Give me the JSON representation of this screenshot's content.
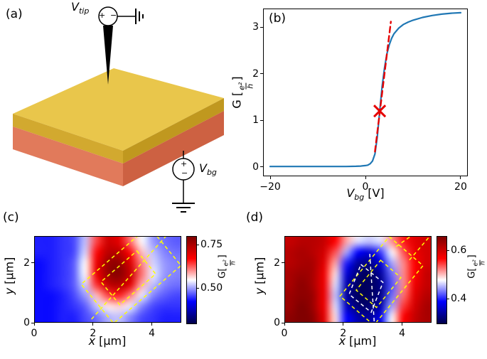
{
  "figure": {
    "panels": {
      "a": "(a)",
      "b": "(b)",
      "c": "(c)",
      "d": "(d)"
    }
  },
  "panel_a": {
    "tip_label": {
      "symbol": "V",
      "sub": "tip"
    },
    "bg_label": {
      "symbol": "V",
      "sub": "bg"
    },
    "tip_source": {
      "plus": "+",
      "minus": "−"
    },
    "bg_source": {
      "plus": "+",
      "minus": "−"
    },
    "colors": {
      "top_gold": "#e9c64b",
      "side_gold": "#d2a92f",
      "front_orange": "#e17a5b",
      "electrode": "#ededed",
      "flake": "#58a8d8"
    }
  },
  "chart_data": [
    {
      "type": "line",
      "panel": "b",
      "xlabel": "V_bg [V]",
      "ylabel": "G [e^2/h]",
      "xlabel_parts": {
        "symbol": "V",
        "sub": "bg",
        "rest": "[V]"
      },
      "ylabel_parts": {
        "prefix": "G [",
        "num": "e²",
        "den": "h",
        "suffix": "]"
      },
      "xlim": [
        -21.5,
        21.5
      ],
      "ylim": [
        -0.2,
        3.4
      ],
      "xticks": [
        {
          "v": -20,
          "label": "−20"
        },
        {
          "v": 0,
          "label": "0"
        },
        {
          "v": 20,
          "label": "20"
        }
      ],
      "yticks": [
        {
          "v": 0,
          "label": "0"
        },
        {
          "v": 1,
          "label": "1"
        },
        {
          "v": 2,
          "label": "2"
        },
        {
          "v": 3,
          "label": "3"
        }
      ],
      "series": [
        {
          "name": "conductance-vs-backgate",
          "color": "#1f77b4",
          "width": 2.2,
          "dash": null,
          "x": [
            -20,
            -16,
            -12,
            -8,
            -4,
            -2,
            -1,
            0,
            0.5,
            1,
            1.5,
            2,
            2.5,
            3,
            3.5,
            4,
            4.5,
            5,
            5.5,
            6,
            7,
            8,
            9,
            10,
            12,
            14,
            16,
            18,
            20
          ],
          "y": [
            0.01,
            0.01,
            0.01,
            0.01,
            0.01,
            0.015,
            0.02,
            0.03,
            0.04,
            0.07,
            0.13,
            0.28,
            0.65,
            1.2,
            1.72,
            2.12,
            2.42,
            2.62,
            2.76,
            2.86,
            2.98,
            3.06,
            3.11,
            3.15,
            3.21,
            3.25,
            3.28,
            3.3,
            3.31
          ]
        },
        {
          "name": "linear-fit",
          "color": "#e50000",
          "width": 2.4,
          "dash": [
            8,
            5
          ],
          "x": [
            2.0,
            5.35
          ],
          "y": [
            0.33,
            3.12
          ]
        }
      ],
      "marker": {
        "x": 3.0,
        "y": 1.2,
        "symbol": "x",
        "color": "#e50000",
        "size": 8
      }
    },
    {
      "type": "heatmap",
      "panel": "c",
      "xlabel": "x [μm]",
      "ylabel": "y [μm]",
      "colorbar_label": "G[e²/h]",
      "xlabel_parts": {
        "symbol": "x",
        "rest": "[μm]"
      },
      "ylabel_parts": {
        "symbol": "y",
        "rest": "[μm]"
      },
      "cbar_label_parts": {
        "prefix": "G[",
        "num": "e²",
        "den": "h",
        "suffix": "]"
      },
      "xlim": [
        0,
        5
      ],
      "ylim": [
        0,
        2.9
      ],
      "xticks": [
        {
          "v": 0,
          "label": "0"
        },
        {
          "v": 2,
          "label": "2"
        },
        {
          "v": 4,
          "label": "4"
        }
      ],
      "yticks": [
        {
          "v": 0,
          "label": "0"
        },
        {
          "v": 2,
          "label": "2"
        }
      ],
      "colormap": "seismic",
      "vmin": 0.3,
      "vmax": 0.8,
      "colorbar_ticks": [
        {
          "v": 0.5,
          "label": "0.50"
        },
        {
          "v": 0.75,
          "label": "0.75"
        }
      ],
      "grid": [
        [
          0.44,
          0.44,
          0.45,
          0.46,
          0.52,
          0.64,
          0.72,
          0.7,
          0.62,
          0.55,
          0.5,
          0.48,
          0.47
        ],
        [
          0.44,
          0.44,
          0.45,
          0.46,
          0.53,
          0.67,
          0.74,
          0.74,
          0.67,
          0.58,
          0.52,
          0.49,
          0.48
        ],
        [
          0.43,
          0.44,
          0.45,
          0.47,
          0.55,
          0.69,
          0.77,
          0.78,
          0.71,
          0.61,
          0.53,
          0.5,
          0.49
        ],
        [
          0.43,
          0.44,
          0.45,
          0.47,
          0.55,
          0.69,
          0.77,
          0.79,
          0.73,
          0.62,
          0.54,
          0.5,
          0.49
        ],
        [
          0.43,
          0.44,
          0.45,
          0.47,
          0.53,
          0.65,
          0.73,
          0.75,
          0.7,
          0.59,
          0.52,
          0.49,
          0.48
        ],
        [
          0.43,
          0.43,
          0.44,
          0.46,
          0.5,
          0.58,
          0.64,
          0.66,
          0.61,
          0.54,
          0.49,
          0.47,
          0.46
        ],
        [
          0.43,
          0.43,
          0.44,
          0.45,
          0.47,
          0.52,
          0.56,
          0.57,
          0.54,
          0.49,
          0.46,
          0.45,
          0.45
        ],
        [
          0.43,
          0.43,
          0.44,
          0.44,
          0.46,
          0.48,
          0.51,
          0.52,
          0.49,
          0.46,
          0.45,
          0.44,
          0.44
        ]
      ],
      "overlays": [
        {
          "color": "#ffff00",
          "dash": [
            5,
            4
          ],
          "closed": true,
          "points": [
            [
              3.9,
              3.22
            ],
            [
              4.99,
              1.91
            ],
            [
              2.7,
              -0.02
            ],
            [
              1.6,
              1.29
            ]
          ]
        },
        {
          "color": "#ffff00",
          "dash": [
            5,
            4
          ],
          "closed": true,
          "points": [
            [
              3.49,
              2.4
            ],
            [
              4.13,
              1.63
            ],
            [
              2.91,
              0.6
            ],
            [
              2.27,
              1.37
            ]
          ]
        },
        {
          "color": "#ffff00",
          "dash": [
            5,
            4
          ],
          "closed": false,
          "points": [
            [
              1.95,
              0.12
            ],
            [
              4.5,
              2.92
            ]
          ]
        }
      ]
    },
    {
      "type": "heatmap",
      "panel": "d",
      "xlabel": "x [μm]",
      "ylabel": "y [μm]",
      "colorbar_label": "G[e²/h]",
      "xlabel_parts": {
        "symbol": "x",
        "rest": "[μm]"
      },
      "ylabel_parts": {
        "symbol": "y",
        "rest": "[μm]"
      },
      "cbar_label_parts": {
        "prefix": "G[",
        "num": "e²",
        "den": "h",
        "suffix": "]"
      },
      "xlim": [
        0,
        5
      ],
      "ylim": [
        0,
        2.9
      ],
      "xticks": [
        {
          "v": 0,
          "label": "0"
        },
        {
          "v": 2,
          "label": "2"
        },
        {
          "v": 4,
          "label": "4"
        }
      ],
      "yticks": [
        {
          "v": 0,
          "label": "0"
        },
        {
          "v": 2,
          "label": "2"
        }
      ],
      "colormap": "seismic",
      "vmin": 0.3,
      "vmax": 0.66,
      "colorbar_ticks": [
        {
          "v": 0.4,
          "label": "0.4"
        },
        {
          "v": 0.6,
          "label": "0.6"
        }
      ],
      "grid": [
        [
          0.61,
          0.62,
          0.62,
          0.61,
          0.57,
          0.51,
          0.47,
          0.46,
          0.47,
          0.52,
          0.56,
          0.59,
          0.6
        ],
        [
          0.62,
          0.63,
          0.62,
          0.6,
          0.54,
          0.45,
          0.39,
          0.37,
          0.41,
          0.48,
          0.54,
          0.58,
          0.6
        ],
        [
          0.62,
          0.63,
          0.63,
          0.59,
          0.51,
          0.4,
          0.34,
          0.33,
          0.37,
          0.45,
          0.52,
          0.57,
          0.6
        ],
        [
          0.63,
          0.64,
          0.63,
          0.58,
          0.49,
          0.37,
          0.32,
          0.31,
          0.34,
          0.43,
          0.52,
          0.57,
          0.61
        ],
        [
          0.63,
          0.65,
          0.63,
          0.58,
          0.47,
          0.35,
          0.31,
          0.31,
          0.33,
          0.42,
          0.52,
          0.58,
          0.61
        ],
        [
          0.64,
          0.65,
          0.64,
          0.58,
          0.46,
          0.34,
          0.31,
          0.31,
          0.33,
          0.43,
          0.53,
          0.59,
          0.62
        ],
        [
          0.64,
          0.66,
          0.64,
          0.58,
          0.47,
          0.36,
          0.32,
          0.32,
          0.35,
          0.45,
          0.55,
          0.6,
          0.63
        ],
        [
          0.65,
          0.66,
          0.65,
          0.59,
          0.49,
          0.39,
          0.35,
          0.34,
          0.38,
          0.48,
          0.57,
          0.61,
          0.63
        ]
      ],
      "overlays": [
        {
          "color": "#ffff00",
          "dash": [
            5,
            4
          ],
          "closed": true,
          "points": [
            [
              3.56,
              2.88
            ],
            [
              4.71,
              1.91
            ],
            [
              3.04,
              -0.08
            ],
            [
              1.89,
              0.89
            ]
          ]
        },
        {
          "color": "#ffff00",
          "dash": [
            5,
            4
          ],
          "closed": true,
          "points": [
            [
              3.27,
              2.09
            ],
            [
              3.96,
              1.51
            ],
            [
              3.13,
              0.51
            ],
            [
              2.44,
              1.09
            ]
          ]
        },
        {
          "color": "#ffff00",
          "dash": [
            5,
            4
          ],
          "closed": false,
          "points": [
            [
              3.8,
              2.55
            ],
            [
              4.45,
              3.0
            ]
          ]
        },
        {
          "color": "#ffff00",
          "dash": [
            5,
            4
          ],
          "closed": false,
          "points": [
            [
              4.25,
              2.1
            ],
            [
              4.95,
              2.9
            ]
          ]
        },
        {
          "color": "#ffffff",
          "dash": [
            5,
            4
          ],
          "closed": true,
          "points": [
            [
              2.6,
              1.95
            ],
            [
              3.35,
              1.35
            ],
            [
              2.95,
              0.35
            ],
            [
              2.2,
              0.95
            ]
          ]
        },
        {
          "color": "#ffffff",
          "dash": [
            5,
            4
          ],
          "closed": false,
          "points": [
            [
              3.05,
              0.05
            ],
            [
              2.9,
              2.3
            ]
          ]
        }
      ]
    }
  ]
}
